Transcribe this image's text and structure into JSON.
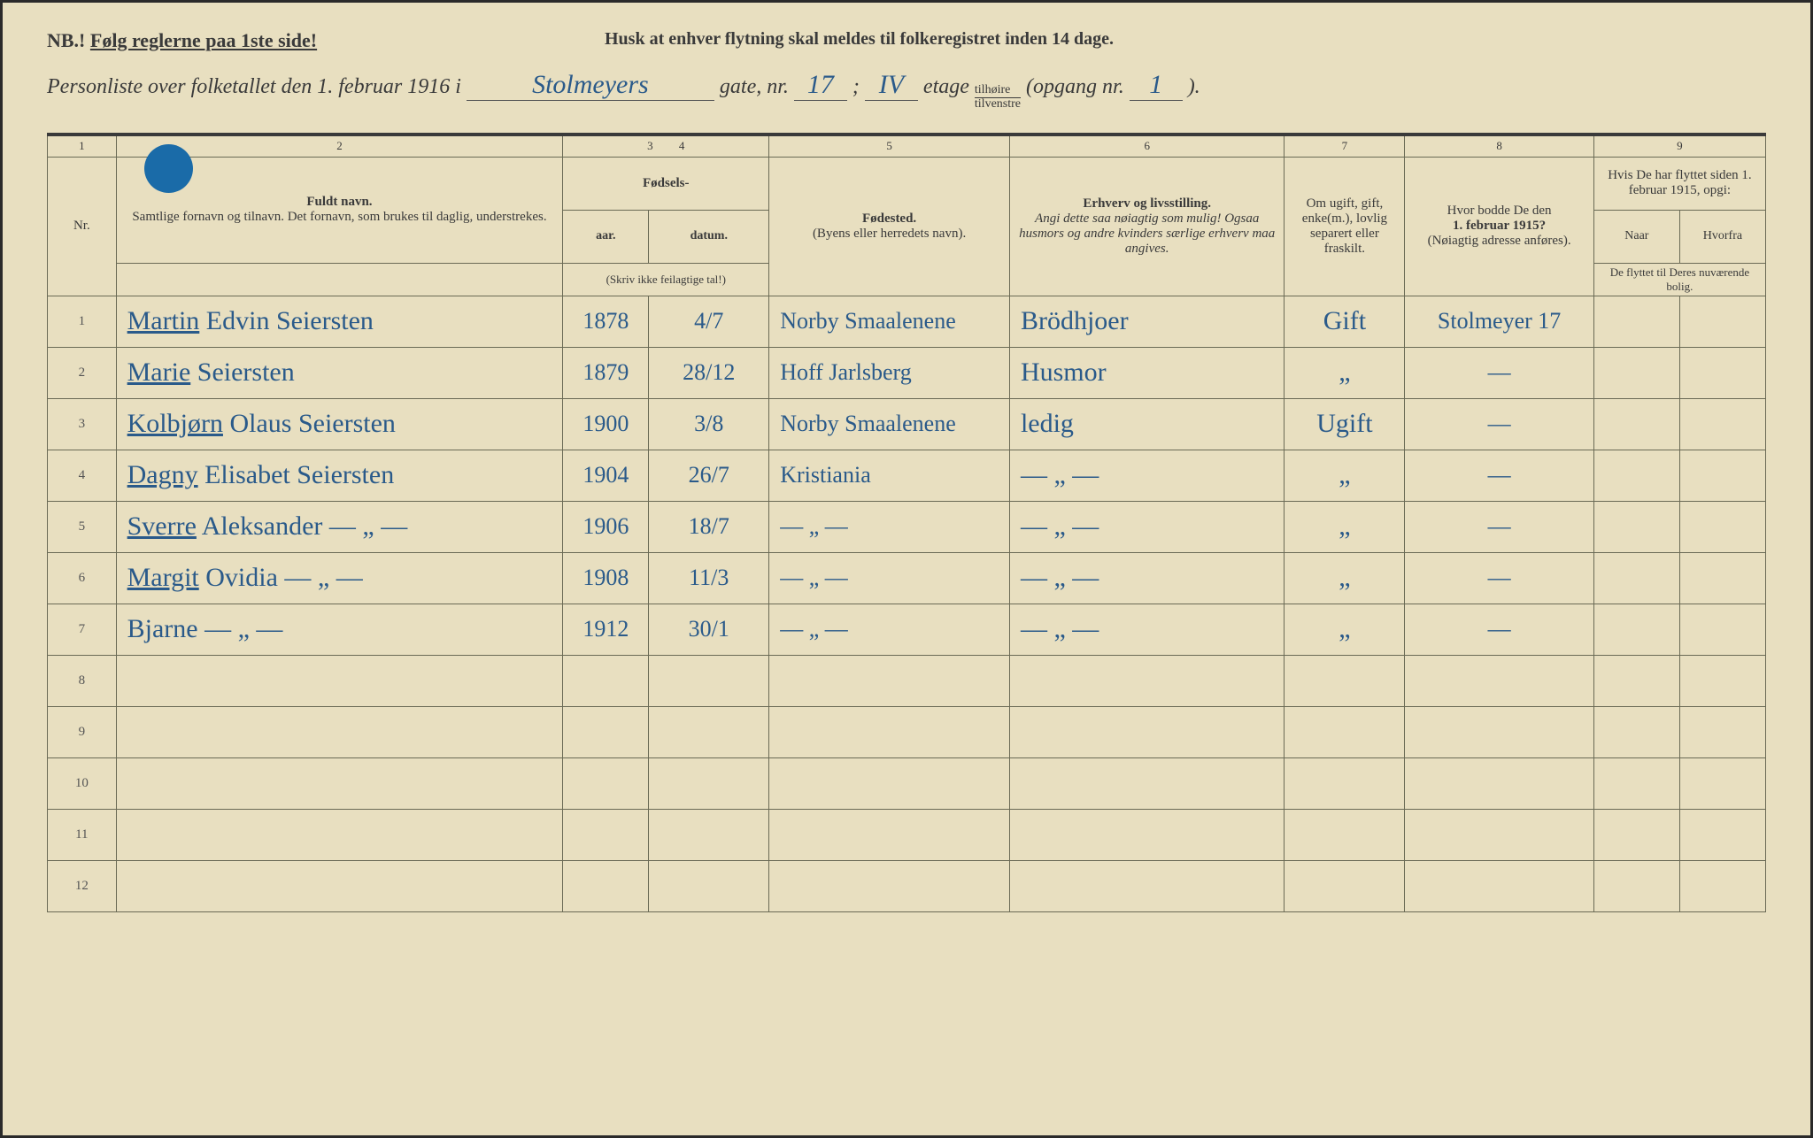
{
  "colors": {
    "paper": "#e8dfc0",
    "ink_print": "#3a3a3a",
    "ink_handwriting": "#2a5a8a",
    "rule_line": "#6a6a55",
    "blue_dot": "#1a6ba8"
  },
  "header": {
    "nb_prefix": "NB.!",
    "nb_text": "Følg reglerne paa 1ste side!",
    "reminder": "Husk at enhver flytning skal meldes til folkeregistret inden 14 dage.",
    "title_prefix": "Personliste over folketallet den 1. februar 1916 i",
    "street_name": "Stolmeyers",
    "label_gate": "gate, nr.",
    "house_nr": "17",
    "sep": ";",
    "floor": "IV",
    "label_etage": "etage",
    "side_top": "tilhøire",
    "side_bot": "tilvenstre",
    "label_opgang": "(opgang nr.",
    "opgang_nr": "1",
    "paren_close": ")."
  },
  "columns": {
    "numbers": [
      "1",
      "2",
      "3",
      "4",
      "5",
      "6",
      "7",
      "8",
      "9"
    ],
    "widths_pct": [
      4,
      26,
      5,
      7,
      14,
      16,
      7,
      11,
      5,
      5
    ],
    "c1": {
      "label": "Nr."
    },
    "c2": {
      "title": "Fuldt navn.",
      "sub": "Samtlige fornavn og tilnavn. Det fornavn, som brukes til daglig, understrekes."
    },
    "c34": {
      "group": "Fødsels-",
      "aar": "aar.",
      "datum": "datum.",
      "note": "(Skriv ikke feilagtige tal!)"
    },
    "c5": {
      "title": "Fødested.",
      "sub": "(Byens eller herredets navn)."
    },
    "c6": {
      "title": "Erhverv og livsstilling.",
      "sub": "Angi dette saa nøiagtig som mulig! Ogsaa husmors og andre kvinders særlige erhverv maa angives."
    },
    "c7": {
      "title": "Om ugift, gift, enke(m.), lovlig separert eller fraskilt."
    },
    "c8": {
      "title": "Hvor bodde De den",
      "bold": "1. februar 1915?",
      "sub": "(Nøiagtig adresse anføres)."
    },
    "c9": {
      "title": "Hvis De har flyttet siden 1. februar 1915, opgi:",
      "naar": "Naar",
      "hvorfra": "Hvorfra",
      "note": "De flyttet til Deres nuværende bolig."
    }
  },
  "rows": [
    {
      "nr": "1",
      "name_underlined": "Martin",
      "name_rest": "Edvin Seiersten",
      "year": "1878",
      "date": "4/7",
      "birthplace": "Norby Smaalenene",
      "occupation": "Brödhjoer",
      "status": "Gift",
      "addr1915": "Stolmeyer 17",
      "naar": "",
      "hvorfra": ""
    },
    {
      "nr": "2",
      "name_underlined": "Marie",
      "name_rest": "Seiersten",
      "year": "1879",
      "date": "28/12",
      "birthplace": "Hoff Jarlsberg",
      "occupation": "Husmor",
      "status": "„",
      "addr1915": "—",
      "naar": "",
      "hvorfra": ""
    },
    {
      "nr": "3",
      "name_underlined": "Kolbjørn",
      "name_rest": "Olaus Seiersten",
      "year": "1900",
      "date": "3/8",
      "birthplace": "Norby Smaalenene",
      "occupation": "ledig",
      "status": "Ugift",
      "addr1915": "—",
      "naar": "",
      "hvorfra": ""
    },
    {
      "nr": "4",
      "name_underlined": "Dagny",
      "name_rest": "Elisabet Seiersten",
      "year": "1904",
      "date": "26/7",
      "birthplace": "Kristiania",
      "occupation": "— „ —",
      "status": "„",
      "addr1915": "—",
      "naar": "",
      "hvorfra": ""
    },
    {
      "nr": "5",
      "name_underlined": "Sverre",
      "name_rest": "Aleksander — „ —",
      "year": "1906",
      "date": "18/7",
      "birthplace": "— „ —",
      "occupation": "— „ —",
      "status": "„",
      "addr1915": "—",
      "naar": "",
      "hvorfra": ""
    },
    {
      "nr": "6",
      "name_underlined": "Margit",
      "name_rest": "Ovidia — „ —",
      "year": "1908",
      "date": "11/3",
      "birthplace": "— „ —",
      "occupation": "— „ —",
      "status": "„",
      "addr1915": "—",
      "naar": "",
      "hvorfra": ""
    },
    {
      "nr": "7",
      "name_underlined": "",
      "name_rest": "Bjarne — „ —",
      "year": "1912",
      "date": "30/1",
      "birthplace": "— „ —",
      "occupation": "— „ —",
      "status": "„",
      "addr1915": "—",
      "naar": "",
      "hvorfra": ""
    },
    {
      "nr": "8"
    },
    {
      "nr": "9"
    },
    {
      "nr": "10"
    },
    {
      "nr": "11"
    },
    {
      "nr": "12"
    }
  ]
}
